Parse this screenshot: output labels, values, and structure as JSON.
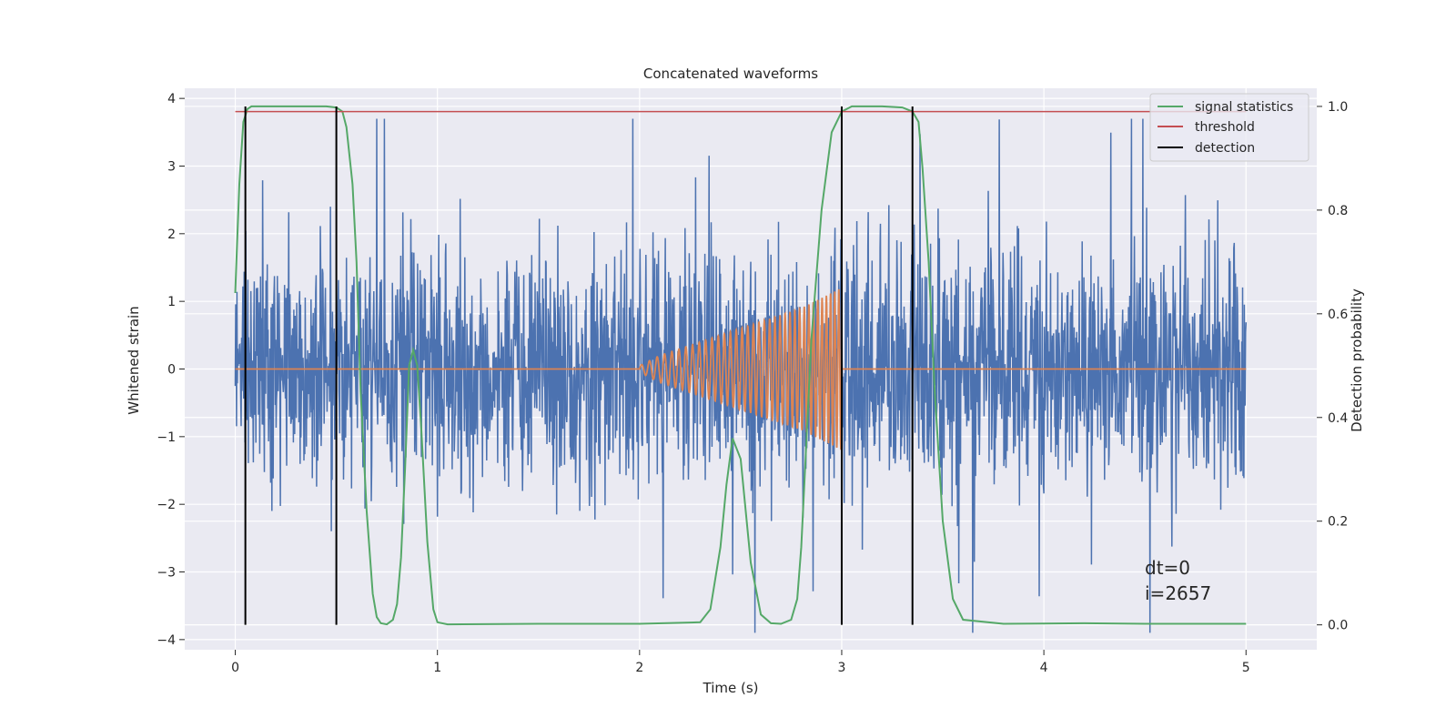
{
  "chart_data": {
    "type": "line",
    "title": "Concatenated waveforms",
    "xlabel": "Time (s)",
    "ylabel": "Whitened strain",
    "ylabel_right": "Detection probability",
    "xlim": [
      -0.25,
      5.35
    ],
    "ylim": [
      -4.15,
      4.15
    ],
    "ylim_right": [
      -0.048,
      1.035
    ],
    "x_ticks": [
      0,
      1,
      2,
      3,
      4,
      5
    ],
    "x_tick_labels": [
      "0",
      "1",
      "2",
      "3",
      "4",
      "5"
    ],
    "y_ticks": [
      -4,
      -3,
      -2,
      -1,
      0,
      1,
      2,
      3,
      4
    ],
    "y_tick_labels": [
      "−4",
      "−3",
      "−2",
      "−1",
      "0",
      "1",
      "2",
      "3",
      "4"
    ],
    "y_right_ticks": [
      0.0,
      0.2,
      0.4,
      0.6,
      0.8,
      1.0
    ],
    "y_right_tick_labels": [
      "0.0",
      "0.2",
      "0.4",
      "0.6",
      "0.8",
      "1.0"
    ],
    "grid": true,
    "legend_position": "top-right",
    "colors": {
      "background": "#eaeaf2",
      "grid": "#ffffff",
      "noise": "#4c72b0",
      "waveform": "#dd8452",
      "signal_statistics": "#55a868",
      "threshold": "#c44e52",
      "detection": "#000000"
    },
    "noise": {
      "name": "whitened strain (noise)",
      "t_start": 0,
      "t_end": 5,
      "amplitude_std": 0.75,
      "approx_range": [
        -3.9,
        3.7
      ]
    },
    "injected_waveform": {
      "name": "injected chirp",
      "t_start": 2.0,
      "t_end": 3.0,
      "x": [
        2.0,
        2.1,
        2.2,
        2.3,
        2.4,
        2.5,
        2.6,
        2.7,
        2.8,
        2.9,
        3.0
      ],
      "envelope": [
        0.05,
        0.2,
        0.3,
        0.4,
        0.5,
        0.6,
        0.7,
        0.8,
        0.9,
        1.05,
        1.2
      ],
      "frequency_hz": [
        25,
        27,
        29,
        31,
        33,
        35,
        37,
        40,
        43,
        47,
        50
      ]
    },
    "series": [
      {
        "name": "signal statistics",
        "axis": "right",
        "x": [
          0.0,
          0.02,
          0.04,
          0.06,
          0.08,
          0.1,
          0.2,
          0.3,
          0.4,
          0.45,
          0.5,
          0.53,
          0.55,
          0.58,
          0.6,
          0.62,
          0.65,
          0.68,
          0.7,
          0.72,
          0.75,
          0.78,
          0.8,
          0.82,
          0.84,
          0.86,
          0.88,
          0.9,
          0.92,
          0.95,
          0.98,
          1.0,
          1.05,
          1.5,
          2.0,
          2.3,
          2.35,
          2.4,
          2.43,
          2.46,
          2.5,
          2.55,
          2.6,
          2.65,
          2.7,
          2.75,
          2.78,
          2.8,
          2.85,
          2.9,
          2.95,
          3.0,
          3.05,
          3.1,
          3.2,
          3.3,
          3.35,
          3.38,
          3.4,
          3.43,
          3.46,
          3.5,
          3.55,
          3.6,
          3.8,
          4.2,
          4.5,
          5.0
        ],
        "values": [
          0.64,
          0.85,
          0.97,
          0.995,
          1.0,
          1.0,
          1.0,
          1.0,
          1.0,
          1.0,
          0.998,
          0.99,
          0.96,
          0.85,
          0.7,
          0.45,
          0.22,
          0.06,
          0.015,
          0.003,
          0.001,
          0.01,
          0.04,
          0.13,
          0.3,
          0.5,
          0.53,
          0.5,
          0.38,
          0.16,
          0.03,
          0.005,
          0.001,
          0.002,
          0.002,
          0.005,
          0.03,
          0.15,
          0.27,
          0.36,
          0.32,
          0.12,
          0.02,
          0.003,
          0.002,
          0.01,
          0.05,
          0.15,
          0.55,
          0.8,
          0.95,
          0.99,
          1.0,
          1.0,
          1.0,
          0.998,
          0.99,
          0.97,
          0.88,
          0.7,
          0.45,
          0.2,
          0.05,
          0.01,
          0.002,
          0.003,
          0.002,
          0.002
        ]
      },
      {
        "name": "threshold",
        "axis": "right",
        "x": [
          0,
          5
        ],
        "values": [
          0.99,
          0.99
        ]
      },
      {
        "name": "detection",
        "axis": "right",
        "type": "vlines",
        "x": [
          0.05,
          0.5,
          3.0,
          3.35
        ],
        "from": 0,
        "to": 1
      }
    ],
    "legend": [
      "signal statistics",
      "threshold",
      "detection"
    ],
    "annotation": [
      "dt=0",
      "i=2657"
    ]
  }
}
